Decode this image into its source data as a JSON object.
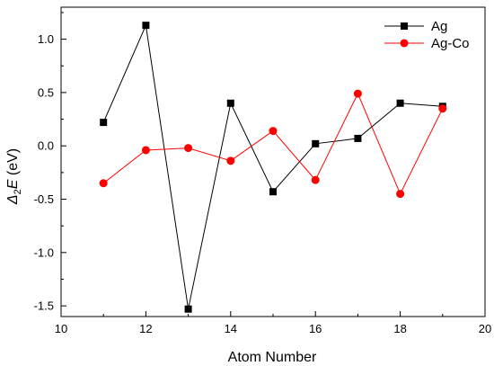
{
  "chart_data": {
    "type": "line",
    "xlabel": "Atom Number",
    "ylabel_symbol": "Δ",
    "ylabel_subscript": "2",
    "ylabel_var": "E",
    "ylabel_unit": " (eV)",
    "xlim": [
      10,
      20
    ],
    "ylim": [
      -1.6,
      1.3
    ],
    "xticks": [
      10,
      12,
      14,
      16,
      18,
      20
    ],
    "yticks": [
      -1.5,
      -1.0,
      -0.5,
      0.0,
      0.5,
      1.0
    ],
    "grid": false,
    "legend_position": "top-right",
    "series": [
      {
        "name": "Ag",
        "color": "#000000",
        "marker": "square",
        "x": [
          11,
          12,
          13,
          14,
          15,
          16,
          17,
          18,
          19
        ],
        "y": [
          0.22,
          1.13,
          -1.53,
          0.4,
          -0.43,
          0.02,
          0.07,
          0.4,
          0.37
        ]
      },
      {
        "name": "Ag-Co",
        "color": "#ff0000",
        "marker": "circle",
        "x": [
          11,
          12,
          13,
          14,
          15,
          16,
          17,
          18,
          19
        ],
        "y": [
          -0.35,
          -0.04,
          -0.02,
          -0.14,
          0.14,
          -0.32,
          0.49,
          -0.45,
          0.35
        ]
      }
    ]
  }
}
